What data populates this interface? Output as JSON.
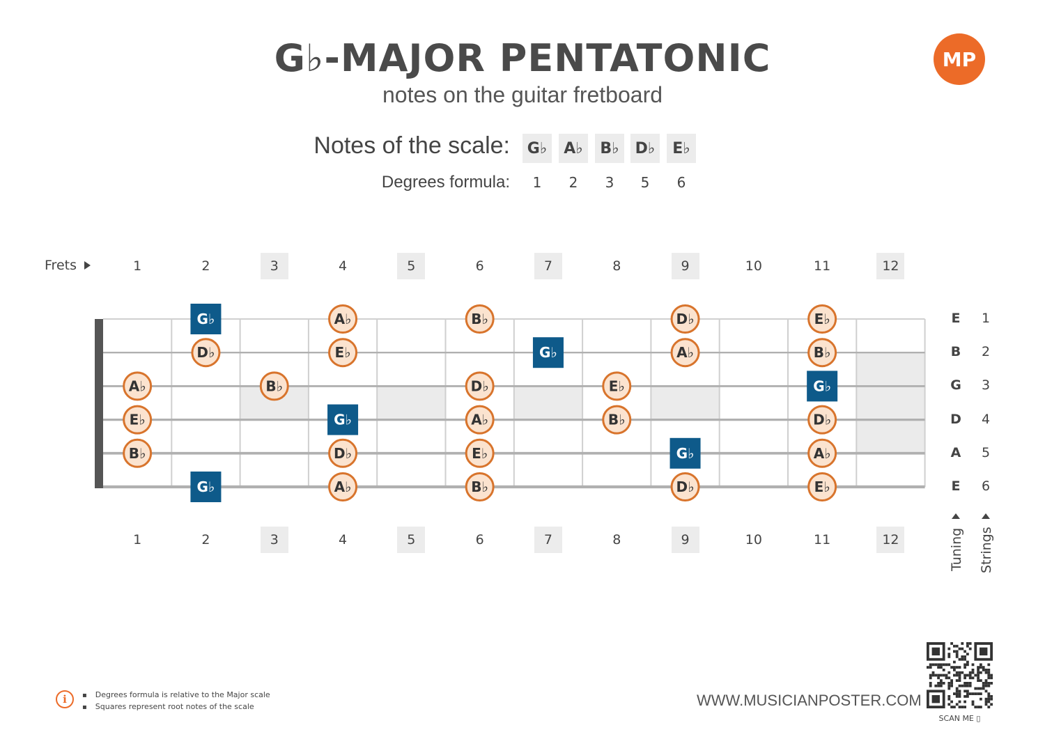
{
  "header": {
    "title": "G♭-MAJOR PENTATONIC",
    "subtitle": "notes on the guitar fretboard",
    "logo_text": "MP"
  },
  "scale": {
    "label": "Notes of the scale:",
    "notes": [
      "G♭",
      "A♭",
      "B♭",
      "D♭",
      "E♭"
    ],
    "degrees_label": "Degrees formula:",
    "degrees": [
      "1",
      "2",
      "3",
      "5",
      "6"
    ]
  },
  "fretboard": {
    "frets_label": "Frets",
    "fret_numbers": [
      "1",
      "2",
      "3",
      "4",
      "5",
      "6",
      "7",
      "8",
      "9",
      "10",
      "11",
      "12"
    ],
    "marked_frets": [
      3,
      5,
      7,
      9,
      12
    ],
    "strings": [
      {
        "string_no": "1",
        "tuning": "E"
      },
      {
        "string_no": "2",
        "tuning": "B"
      },
      {
        "string_no": "3",
        "tuning": "G"
      },
      {
        "string_no": "4",
        "tuning": "D"
      },
      {
        "string_no": "5",
        "tuning": "A"
      },
      {
        "string_no": "6",
        "tuning": "E"
      }
    ],
    "tuning_label": "Tuning",
    "strings_label": "Strings",
    "notes": [
      {
        "string": 1,
        "fret": 2,
        "note": "G♭",
        "root": true
      },
      {
        "string": 1,
        "fret": 4,
        "note": "A♭",
        "root": false
      },
      {
        "string": 1,
        "fret": 6,
        "note": "B♭",
        "root": false
      },
      {
        "string": 1,
        "fret": 9,
        "note": "D♭",
        "root": false
      },
      {
        "string": 1,
        "fret": 11,
        "note": "E♭",
        "root": false
      },
      {
        "string": 2,
        "fret": 2,
        "note": "D♭",
        "root": false
      },
      {
        "string": 2,
        "fret": 4,
        "note": "E♭",
        "root": false
      },
      {
        "string": 2,
        "fret": 7,
        "note": "G♭",
        "root": true
      },
      {
        "string": 2,
        "fret": 9,
        "note": "A♭",
        "root": false
      },
      {
        "string": 2,
        "fret": 11,
        "note": "B♭",
        "root": false
      },
      {
        "string": 3,
        "fret": 1,
        "note": "A♭",
        "root": false
      },
      {
        "string": 3,
        "fret": 3,
        "note": "B♭",
        "root": false
      },
      {
        "string": 3,
        "fret": 6,
        "note": "D♭",
        "root": false
      },
      {
        "string": 3,
        "fret": 8,
        "note": "E♭",
        "root": false
      },
      {
        "string": 3,
        "fret": 11,
        "note": "G♭",
        "root": true
      },
      {
        "string": 4,
        "fret": 1,
        "note": "E♭",
        "root": false
      },
      {
        "string": 4,
        "fret": 4,
        "note": "G♭",
        "root": true
      },
      {
        "string": 4,
        "fret": 6,
        "note": "A♭",
        "root": false
      },
      {
        "string": 4,
        "fret": 8,
        "note": "B♭",
        "root": false
      },
      {
        "string": 4,
        "fret": 11,
        "note": "D♭",
        "root": false
      },
      {
        "string": 5,
        "fret": 1,
        "note": "B♭",
        "root": false
      },
      {
        "string": 5,
        "fret": 4,
        "note": "D♭",
        "root": false
      },
      {
        "string": 5,
        "fret": 6,
        "note": "E♭",
        "root": false
      },
      {
        "string": 5,
        "fret": 9,
        "note": "G♭",
        "root": true
      },
      {
        "string": 5,
        "fret": 11,
        "note": "A♭",
        "root": false
      },
      {
        "string": 6,
        "fret": 2,
        "note": "G♭",
        "root": true
      },
      {
        "string": 6,
        "fret": 4,
        "note": "A♭",
        "root": false
      },
      {
        "string": 6,
        "fret": 6,
        "note": "B♭",
        "root": false
      },
      {
        "string": 6,
        "fret": 9,
        "note": "D♭",
        "root": false
      },
      {
        "string": 6,
        "fret": 11,
        "note": "E♭",
        "root": false
      }
    ]
  },
  "colors": {
    "root_fill": "#0e5a8a",
    "note_fill": "#fbe3cf",
    "note_stroke": "#d8742c",
    "inlay": "#ebebeb",
    "accent": "#ec6b28"
  },
  "footer": {
    "notes": [
      "Degrees formula is relative to the Major scale",
      "Squares represent root notes of the scale"
    ],
    "website": "WWW.MUSICIANPOSTER.COM",
    "scan_label": "SCAN ME"
  }
}
